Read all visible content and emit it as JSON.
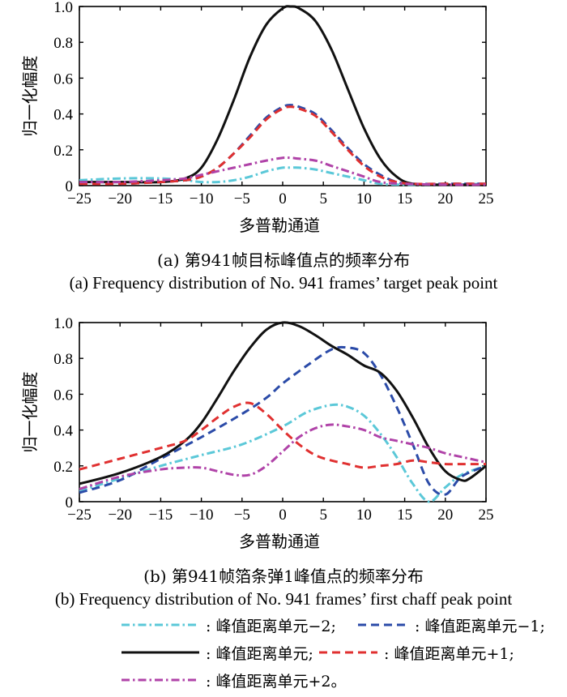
{
  "chart_data": [
    {
      "type": "line",
      "panel": "a",
      "title": "(a) 第941帧目标峰值点的频率分布",
      "subtitle": "(a) Frequency distribution of No. 941 frames’ target peak point",
      "xlabel": "多普勒通道",
      "ylabel": "归一化幅度",
      "xlim": [
        -25,
        25
      ],
      "ylim": [
        0,
        1.0
      ],
      "xticks": [
        "−25",
        "−20",
        "−15",
        "−10",
        "−5",
        "0",
        "5",
        "10",
        "15",
        "20",
        "25"
      ],
      "yticks": [
        "0",
        "0.2",
        "0.4",
        "0.6",
        "0.8",
        "1.0"
      ],
      "grid": false,
      "series": [
        {
          "name": "峰值距离单元−2",
          "color": "#5bc8d8",
          "style": "dashdot",
          "x": [
            -25,
            -20,
            -15,
            -12,
            -10,
            -8,
            -6,
            -4,
            -2,
            0,
            1,
            2,
            4,
            6,
            8,
            10,
            12,
            15,
            20,
            25
          ],
          "y": [
            0.03,
            0.04,
            0.04,
            0.03,
            0.02,
            0.02,
            0.03,
            0.05,
            0.08,
            0.1,
            0.1,
            0.1,
            0.09,
            0.07,
            0.05,
            0.03,
            0.01,
            0.005,
            0.005,
            0.01
          ]
        },
        {
          "name": "峰值距离单元−1",
          "color": "#2b4ba8",
          "style": "dash",
          "x": [
            -25,
            -20,
            -15,
            -12,
            -10,
            -8,
            -6,
            -4,
            -2,
            0,
            1,
            2,
            4,
            6,
            8,
            10,
            12,
            14,
            16,
            20,
            25
          ],
          "y": [
            0.01,
            0.01,
            0.02,
            0.03,
            0.05,
            0.1,
            0.18,
            0.28,
            0.38,
            0.44,
            0.45,
            0.44,
            0.4,
            0.31,
            0.21,
            0.12,
            0.06,
            0.02,
            0.01,
            0.01,
            0.01
          ]
        },
        {
          "name": "峰值距离单元",
          "color": "#111111",
          "style": "solid",
          "x": [
            -25,
            -20,
            -15,
            -12,
            -10,
            -8,
            -6,
            -4,
            -2,
            0,
            1,
            2,
            4,
            6,
            8,
            10,
            12,
            14,
            16,
            20,
            25
          ],
          "y": [
            0.02,
            0.02,
            0.02,
            0.04,
            0.1,
            0.26,
            0.48,
            0.72,
            0.9,
            0.99,
            1.0,
            0.99,
            0.92,
            0.76,
            0.54,
            0.32,
            0.15,
            0.05,
            0.01,
            0.005,
            0.005
          ]
        },
        {
          "name": "峰值距离单元+1",
          "color": "#e03030",
          "style": "dash",
          "x": [
            -25,
            -20,
            -15,
            -12,
            -10,
            -8,
            -6,
            -4,
            -2,
            0,
            1,
            2,
            4,
            6,
            8,
            10,
            12,
            14,
            16,
            20,
            25
          ],
          "y": [
            0.01,
            0.01,
            0.02,
            0.03,
            0.05,
            0.1,
            0.18,
            0.27,
            0.37,
            0.43,
            0.44,
            0.43,
            0.39,
            0.3,
            0.2,
            0.11,
            0.05,
            0.02,
            0.01,
            0.01,
            0.01
          ]
        },
        {
          "name": "峰值距离单元+2",
          "color": "#b043a8",
          "style": "dashdot",
          "x": [
            -25,
            -20,
            -15,
            -12,
            -10,
            -8,
            -6,
            -4,
            -2,
            0,
            1,
            2,
            4,
            6,
            8,
            10,
            12,
            15,
            20,
            25
          ],
          "y": [
            0.02,
            0.02,
            0.03,
            0.04,
            0.06,
            0.08,
            0.1,
            0.12,
            0.14,
            0.155,
            0.155,
            0.15,
            0.14,
            0.11,
            0.08,
            0.05,
            0.02,
            0.01,
            0.005,
            0.005
          ]
        }
      ]
    },
    {
      "type": "line",
      "panel": "b",
      "title": "(b) 第941帧箔条弹1峰值点的频率分布",
      "subtitle": "(b) Frequency distribution of No. 941 frames’ first chaff peak point",
      "xlabel": "多普勒通道",
      "ylabel": "归一化幅度",
      "xlim": [
        -25,
        25
      ],
      "ylim": [
        0,
        1.0
      ],
      "xticks": [
        "−25",
        "−20",
        "−15",
        "−10",
        "−5",
        "0",
        "5",
        "10",
        "15",
        "20",
        "25"
      ],
      "yticks": [
        "0",
        "0.2",
        "0.4",
        "0.6",
        "0.8",
        "1.0"
      ],
      "grid": false,
      "series": [
        {
          "name": "峰值距离单元−2",
          "color": "#5bc8d8",
          "style": "dashdot",
          "x": [
            -25,
            -20,
            -15,
            -10,
            -5,
            0,
            3,
            6,
            8,
            10,
            12,
            14,
            16,
            18,
            20,
            22,
            25
          ],
          "y": [
            0.06,
            0.13,
            0.2,
            0.26,
            0.32,
            0.42,
            0.5,
            0.54,
            0.53,
            0.48,
            0.38,
            0.25,
            0.1,
            0.0,
            0.08,
            0.15,
            0.2
          ]
        },
        {
          "name": "峰值距离单元−1",
          "color": "#2b4ba8",
          "style": "dash",
          "x": [
            -25,
            -20,
            -15,
            -10,
            -5,
            -2,
            0,
            3,
            6,
            8,
            10,
            12,
            14,
            16,
            18,
            20,
            22,
            25
          ],
          "y": [
            0.05,
            0.12,
            0.24,
            0.36,
            0.49,
            0.58,
            0.66,
            0.76,
            0.85,
            0.86,
            0.83,
            0.71,
            0.53,
            0.32,
            0.1,
            0.04,
            0.14,
            0.2
          ]
        },
        {
          "name": "峰值距离单元",
          "color": "#111111",
          "style": "solid",
          "x": [
            -25,
            -20,
            -15,
            -12,
            -10,
            -8,
            -6,
            -4,
            -2,
            0,
            2,
            4,
            6,
            8,
            10,
            12,
            14,
            16,
            18,
            20,
            22,
            23,
            25
          ],
          "y": [
            0.1,
            0.16,
            0.25,
            0.34,
            0.44,
            0.58,
            0.73,
            0.86,
            0.96,
            1.0,
            0.98,
            0.93,
            0.87,
            0.82,
            0.76,
            0.72,
            0.62,
            0.47,
            0.3,
            0.17,
            0.12,
            0.13,
            0.2
          ]
        },
        {
          "name": "峰值距离单元+1",
          "color": "#e03030",
          "style": "dash",
          "x": [
            -25,
            -20,
            -15,
            -12,
            -10,
            -8,
            -6,
            -4,
            -2,
            0,
            2,
            4,
            6,
            8,
            10,
            12,
            14,
            16,
            18,
            20,
            22,
            25
          ],
          "y": [
            0.18,
            0.24,
            0.3,
            0.34,
            0.4,
            0.47,
            0.53,
            0.55,
            0.49,
            0.4,
            0.32,
            0.26,
            0.23,
            0.21,
            0.19,
            0.2,
            0.21,
            0.23,
            0.22,
            0.21,
            0.21,
            0.21
          ]
        },
        {
          "name": "峰值距离单元+2",
          "color": "#b043a8",
          "style": "dashdot",
          "x": [
            -25,
            -20,
            -15,
            -12,
            -10,
            -8,
            -6,
            -4,
            -2,
            0,
            2,
            4,
            6,
            8,
            10,
            12,
            14,
            16,
            18,
            20,
            22,
            25
          ],
          "y": [
            0.07,
            0.14,
            0.18,
            0.19,
            0.19,
            0.17,
            0.15,
            0.15,
            0.2,
            0.28,
            0.36,
            0.41,
            0.43,
            0.42,
            0.4,
            0.36,
            0.34,
            0.32,
            0.3,
            0.27,
            0.25,
            0.22
          ]
        }
      ]
    }
  ],
  "legend": {
    "items": [
      {
        "label": ": 峰值距离单元−2;",
        "color": "#5bc8d8",
        "style": "dashdot"
      },
      {
        "label": ": 峰值距离单元−1;",
        "color": "#2b4ba8",
        "style": "dash"
      },
      {
        "label": ": 峰值距离单元;",
        "color": "#111111",
        "style": "solid"
      },
      {
        "label": ": 峰值距离单元+1;",
        "color": "#e03030",
        "style": "dash"
      },
      {
        "label": ": 峰值距离单元+2。",
        "color": "#b043a8",
        "style": "dashdot"
      }
    ]
  }
}
